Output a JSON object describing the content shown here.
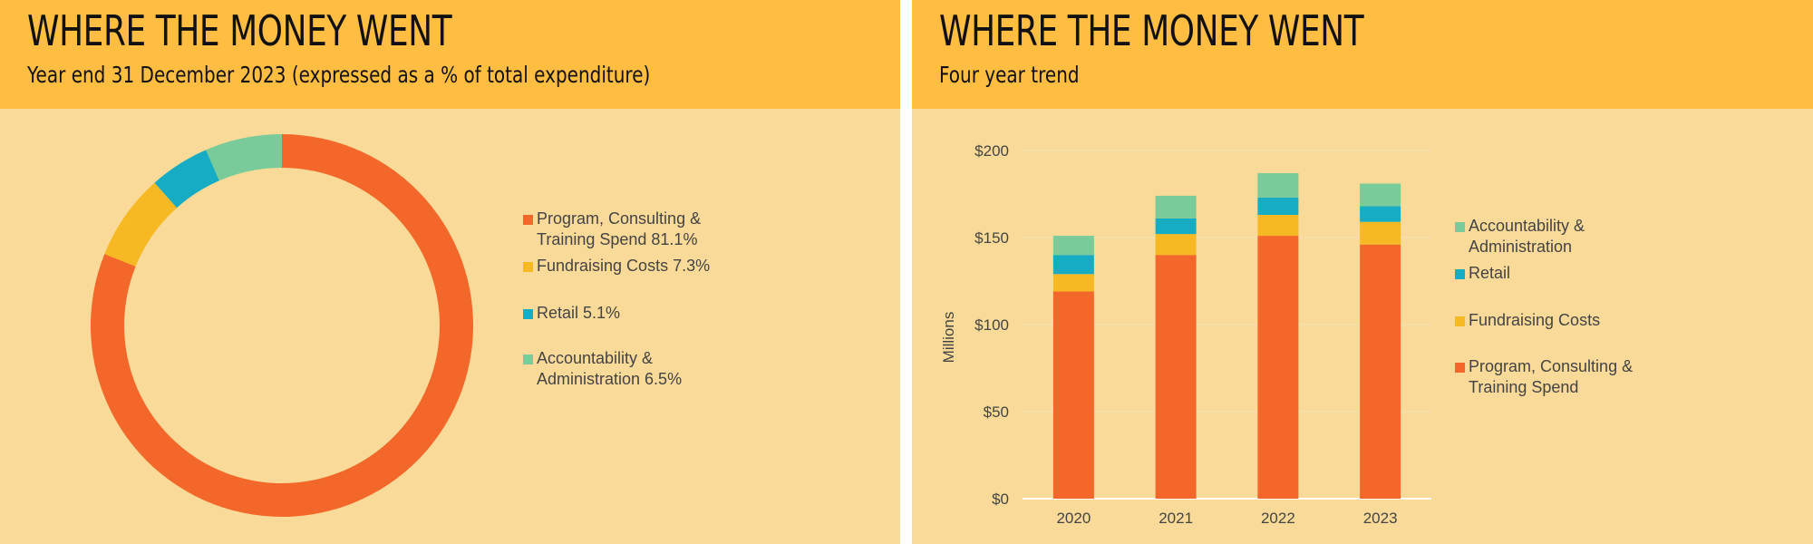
{
  "colors": {
    "program": "#f4672a",
    "fundraising": "#f7b923",
    "retail": "#16adc4",
    "accountability": "#7acb9a",
    "band": "#ffbd42",
    "panel": "#f9da98"
  },
  "left": {
    "title": "WHERE THE MONEY WENT",
    "subtitle": "Year end 31 December 2023 (expressed as a % of total expenditure)",
    "legend": [
      {
        "lines": [
          "Program, Consulting &",
          "Training Spend 81.1%"
        ],
        "color": "#f4672a"
      },
      {
        "lines": [
          "Fundraising Costs 7.3%"
        ],
        "color": "#f7b923"
      },
      {
        "lines": [
          "Retail 5.1%"
        ],
        "color": "#16adc4"
      },
      {
        "lines": [
          "Accountability &",
          "Administration 6.5%"
        ],
        "color": "#7acb9a"
      }
    ]
  },
  "right": {
    "title": "WHERE THE MONEY WENT",
    "subtitle": "Four year trend",
    "legend": [
      {
        "lines": [
          "Accountability &",
          "Administration"
        ],
        "color": "#7acb9a"
      },
      {
        "lines": [
          "Retail"
        ],
        "color": "#16adc4"
      },
      {
        "lines": [
          "Fundraising Costs"
        ],
        "color": "#f7b923"
      },
      {
        "lines": [
          "Program, Consulting &",
          "Training Spend"
        ],
        "color": "#f4672a"
      }
    ]
  },
  "chart_data": [
    {
      "type": "pie",
      "variant": "donut",
      "title": "WHERE THE MONEY WENT",
      "subtitle": "Year end 31 December 2023 (expressed as a % of total expenditure)",
      "categories": [
        "Program, Consulting & Training Spend",
        "Fundraising Costs",
        "Retail",
        "Accountability & Administration"
      ],
      "values": [
        81.1,
        7.3,
        5.1,
        6.5
      ],
      "colors": [
        "#f4672a",
        "#f7b923",
        "#16adc4",
        "#7acb9a"
      ],
      "legend_position": "right"
    },
    {
      "type": "bar",
      "stacked": true,
      "title": "WHERE THE MONEY WENT",
      "subtitle": "Four year trend",
      "categories": [
        "2020",
        "2021",
        "2022",
        "2023"
      ],
      "ylabel": "Millions",
      "ylim": [
        0,
        200
      ],
      "yticks": [
        "$0",
        "$50",
        "$100",
        "$150",
        "$200"
      ],
      "yticks_values": [
        0,
        50,
        100,
        150,
        200
      ],
      "grid": true,
      "legend_position": "right",
      "series": [
        {
          "name": "Program, Consulting & Training Spend",
          "values": [
            119,
            140,
            151,
            146
          ],
          "color": "#f4672a"
        },
        {
          "name": "Fundraising Costs",
          "values": [
            10,
            12,
            12,
            13
          ],
          "color": "#f7b923"
        },
        {
          "name": "Retail",
          "values": [
            11,
            9,
            10,
            9
          ],
          "color": "#16adc4"
        },
        {
          "name": "Accountability & Administration",
          "values": [
            11,
            13,
            14,
            13
          ],
          "color": "#7acb9a"
        }
      ]
    }
  ]
}
